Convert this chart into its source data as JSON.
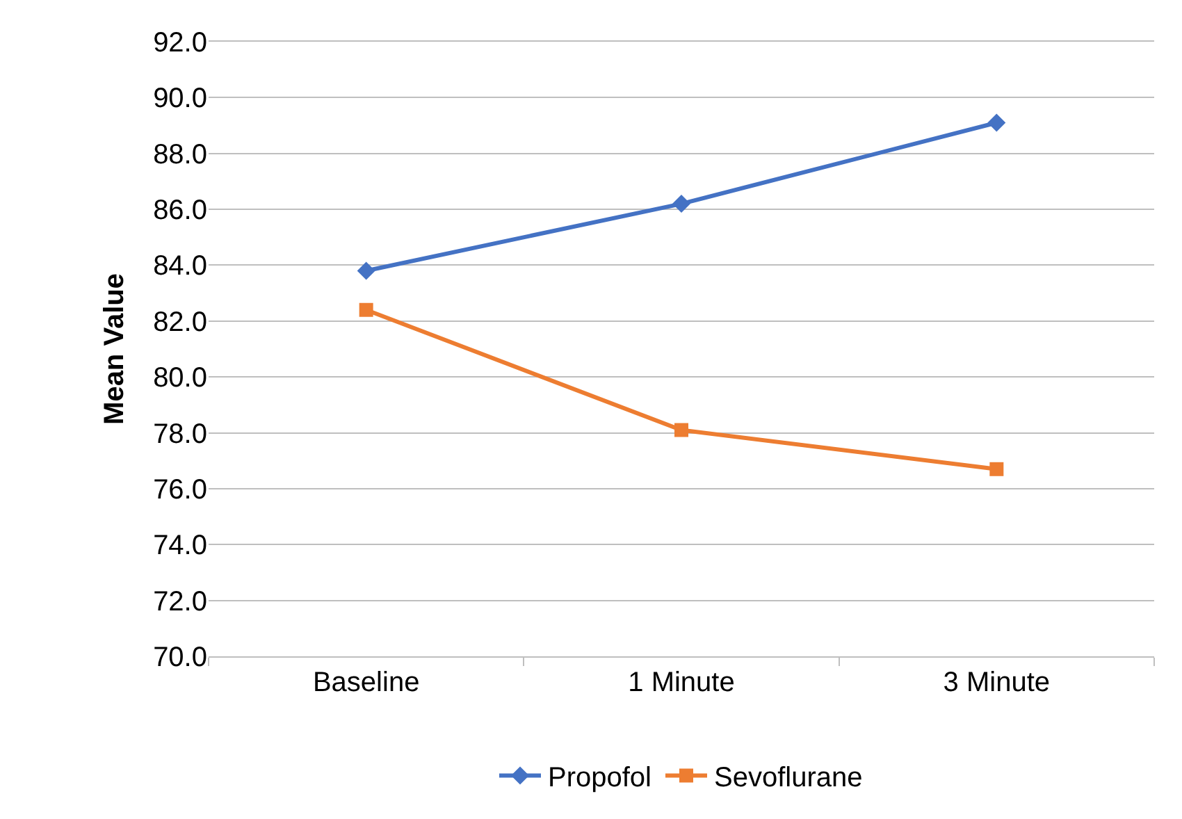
{
  "chart_data": {
    "type": "line",
    "ylabel": "Mean Value",
    "categories": [
      "Baseline",
      "1 Minute",
      "3 Minute"
    ],
    "series": [
      {
        "name": "Propofol",
        "color": "#4472c4",
        "marker": "diamond",
        "values": [
          83.8,
          86.2,
          89.1
        ]
      },
      {
        "name": "Sevoflurane",
        "color": "#ed7d31",
        "marker": "square",
        "values": [
          82.4,
          78.1,
          76.7
        ]
      }
    ],
    "ylim": [
      70,
      92
    ],
    "yticks": [
      {
        "value": 70,
        "label": "70.0"
      },
      {
        "value": 72,
        "label": "72.0"
      },
      {
        "value": 74,
        "label": "74.0"
      },
      {
        "value": 76,
        "label": "76.0"
      },
      {
        "value": 78,
        "label": "78.0"
      },
      {
        "value": 80,
        "label": "80.0"
      },
      {
        "value": 82,
        "label": "82.0"
      },
      {
        "value": 84,
        "label": "84.0"
      },
      {
        "value": 86,
        "label": "86.0"
      },
      {
        "value": 88,
        "label": "88.0"
      },
      {
        "value": 90,
        "label": "90.0"
      },
      {
        "value": 92,
        "label": "92.0"
      }
    ],
    "grid": "y",
    "legend": "bottom",
    "line_style": "solid"
  }
}
